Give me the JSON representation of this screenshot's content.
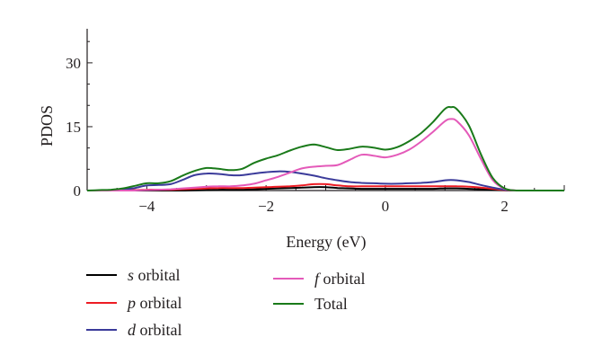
{
  "chart_data": {
    "type": "line",
    "title": "",
    "xlabel": "Energy (eV)",
    "ylabel": "PDOS",
    "xlim": [
      -5,
      3
    ],
    "ylim": [
      0,
      38
    ],
    "xticks": [
      -4,
      -2,
      0,
      2
    ],
    "xtick_labels": [
      "−4",
      "−2",
      "0",
      "2"
    ],
    "yticks": [
      0,
      15,
      30
    ],
    "ytick_labels": [
      "0",
      "15",
      "30"
    ],
    "grid": false,
    "legend_position": "bottom",
    "x": [
      -5,
      -4.8,
      -4.6,
      -4.4,
      -4.2,
      -4,
      -3.8,
      -3.6,
      -3.4,
      -3.2,
      -3,
      -2.8,
      -2.6,
      -2.4,
      -2.2,
      -2,
      -1.8,
      -1.6,
      -1.4,
      -1.2,
      -1,
      -0.8,
      -0.6,
      -0.4,
      -0.2,
      0,
      0.2,
      0.4,
      0.6,
      0.8,
      1,
      1.1,
      1.2,
      1.4,
      1.6,
      1.8,
      2,
      2.2,
      2.4,
      2.6,
      2.8,
      3
    ],
    "series": [
      {
        "name": "s orbital",
        "color": "#000000",
        "values": [
          0,
          0,
          0,
          0,
          0,
          0,
          0,
          0,
          0,
          0.05,
          0.1,
          0.2,
          0.2,
          0.2,
          0.3,
          0.4,
          0.5,
          0.6,
          0.7,
          0.8,
          0.8,
          0.6,
          0.5,
          0.4,
          0.4,
          0.4,
          0.4,
          0.4,
          0.4,
          0.4,
          0.5,
          0.5,
          0.5,
          0.4,
          0.3,
          0.2,
          0.05,
          0,
          0,
          0,
          0,
          0
        ]
      },
      {
        "name": "p orbital",
        "color": "#ed1c24",
        "values": [
          0,
          0,
          0,
          0,
          0.1,
          0.2,
          0.2,
          0.2,
          0.3,
          0.4,
          0.5,
          0.6,
          0.6,
          0.6,
          0.7,
          0.8,
          0.9,
          1.0,
          1.2,
          1.5,
          1.5,
          1.2,
          1.0,
          1.0,
          1.0,
          1.0,
          1.0,
          1.0,
          1.0,
          1.0,
          1.0,
          1.0,
          1.0,
          0.9,
          0.7,
          0.4,
          0.1,
          0,
          0,
          0,
          0,
          0
        ]
      },
      {
        "name": "d orbital",
        "color": "#3b3b9a",
        "values": [
          0,
          0,
          0.1,
          0.3,
          0.6,
          1.2,
          1.3,
          1.5,
          2.5,
          3.6,
          4.0,
          3.9,
          3.6,
          3.6,
          4.0,
          4.3,
          4.5,
          4.4,
          4.0,
          3.5,
          2.9,
          2.4,
          2.0,
          1.8,
          1.7,
          1.6,
          1.6,
          1.7,
          1.8,
          2.0,
          2.4,
          2.5,
          2.4,
          2.0,
          1.3,
          0.7,
          0.2,
          0,
          0,
          0,
          0,
          0
        ]
      },
      {
        "name": "f orbital",
        "color": "#e45ab9",
        "values": [
          0,
          0,
          0,
          0,
          0,
          0.1,
          0.2,
          0.3,
          0.5,
          0.7,
          0.9,
          1.0,
          1.0,
          1.2,
          1.6,
          2.4,
          3.2,
          4.2,
          5.2,
          5.6,
          5.8,
          6.0,
          7.2,
          8.4,
          8.2,
          7.8,
          8.4,
          9.6,
          11.5,
          13.8,
          16.3,
          16.8,
          16.3,
          13.0,
          7.5,
          2.5,
          0.4,
          0,
          0,
          0,
          0,
          0
        ]
      },
      {
        "name": "Total",
        "color": "#1a7a1a",
        "values": [
          0,
          0.1,
          0.2,
          0.5,
          1.1,
          1.7,
          1.7,
          2.2,
          3.5,
          4.6,
          5.3,
          5.1,
          4.8,
          5.1,
          6.5,
          7.5,
          8.3,
          9.4,
          10.3,
          10.8,
          10.2,
          9.5,
          9.8,
          10.3,
          10.1,
          9.6,
          10.2,
          11.6,
          13.5,
          16.1,
          19.2,
          19.6,
          19.1,
          15.3,
          8.6,
          3.0,
          0.5,
          0,
          0,
          0,
          0,
          0
        ]
      }
    ]
  },
  "legend": [
    {
      "symbol": "s",
      "rest": " orbital",
      "color": "#000000"
    },
    {
      "symbol": "p",
      "rest": " orbital",
      "color": "#ed1c24"
    },
    {
      "symbol": "d",
      "rest": " orbital",
      "color": "#3b3b9a"
    },
    {
      "symbol": "f",
      "rest": " orbital",
      "color": "#e45ab9"
    },
    {
      "symbol": "",
      "rest": "Total",
      "color": "#1a7a1a"
    }
  ]
}
